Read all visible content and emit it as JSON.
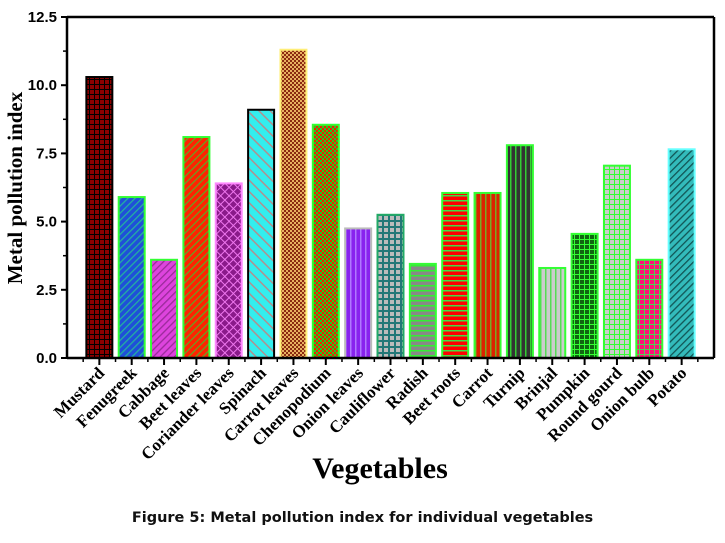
{
  "chart_data": {
    "type": "bar",
    "title": "",
    "xlabel": "Vegetables",
    "ylabel": "Metal pollution index",
    "ylim": [
      0,
      12.5
    ],
    "yticks": [
      "0.0",
      "2.5",
      "5.0",
      "7.5",
      "10.0",
      "12.5"
    ],
    "ytick_values": [
      0,
      2.5,
      5.0,
      7.5,
      10.0,
      12.5
    ],
    "grid": false,
    "legend": "none",
    "categories": [
      "Mustard",
      "Fenugreek",
      "Cabbage",
      "Beet leaves",
      "Coriander leaves",
      "Spinach",
      "Carrot leaves",
      "Chenopodium",
      "Onion leaves",
      "Cauliflower",
      "Radish",
      "Beet roots",
      "Carrot",
      "Turnip",
      "Brinjal",
      "Pumpkin",
      "Round gourd",
      "Onion bulb",
      "Potato"
    ],
    "values": [
      10.3,
      5.9,
      3.6,
      8.1,
      6.4,
      9.1,
      11.3,
      8.55,
      4.75,
      5.25,
      3.45,
      6.05,
      6.05,
      7.8,
      3.3,
      4.55,
      7.05,
      3.6,
      7.65
    ],
    "bar_styles": [
      {
        "fill": "#8b0000",
        "pattern": "grid",
        "pattern_color": "#000000",
        "border": "#000000"
      },
      {
        "fill": "#1f4fd8",
        "pattern": "diag",
        "pattern_color": "#22b0a0",
        "border": "#33ff33"
      },
      {
        "fill": "#dd44dd",
        "pattern": "diag",
        "pattern_color": "#9a2a9a",
        "border": "#33ff33"
      },
      {
        "fill": "#ff2200",
        "pattern": "diag",
        "pattern_color": "#6aa020",
        "border": "#33ff33"
      },
      {
        "fill": "#8a1a8a",
        "pattern": "crosshatch",
        "pattern_color": "#ee77ee",
        "border": "#ff88ff"
      },
      {
        "fill": "#33eeee",
        "pattern": "diag-rev",
        "pattern_color": "#b09090",
        "border": "#000000"
      },
      {
        "fill": "#8b2a10",
        "pattern": "checker",
        "pattern_color": "#e8b060",
        "border": "#ffee77"
      },
      {
        "fill": "#ee2200",
        "pattern": "checker",
        "pattern_color": "#22cc22",
        "border": "#33ff33"
      },
      {
        "fill": "#8822ee",
        "pattern": "vertical",
        "pattern_color": "#b077ff",
        "border": "#bbbbbb"
      },
      {
        "fill": "#bbbbbb",
        "pattern": "grid-thick",
        "pattern_color": "#227777",
        "border": "#22aa66"
      },
      {
        "fill": "#888888",
        "pattern": "horizontal",
        "pattern_color": "#33ee33",
        "border": "#33ff33"
      },
      {
        "fill": "#ff0000",
        "pattern": "horizontal",
        "pattern_color": "#44dd44",
        "border": "#33ff33"
      },
      {
        "fill": "#dd2200",
        "pattern": "vertical",
        "pattern_color": "#77aa22",
        "border": "#33ff33"
      },
      {
        "fill": "#333333",
        "pattern": "vertical",
        "pattern_color": "#33cc33",
        "border": "#33ff33"
      },
      {
        "fill": "#cccccc",
        "pattern": "vertical",
        "pattern_color": "#55dd55",
        "border": "#33ff33"
      },
      {
        "fill": "#116611",
        "pattern": "grid",
        "pattern_color": "#33ff33",
        "border": "#33ff33"
      },
      {
        "fill": "#cccccc",
        "pattern": "grid",
        "pattern_color": "#33ff33",
        "border": "#33ff33"
      },
      {
        "fill": "#ff1177",
        "pattern": "grid",
        "pattern_color": "#55cc55",
        "border": "#33ff33"
      },
      {
        "fill": "#33bbbb",
        "pattern": "diag",
        "pattern_color": "#115555",
        "border": "#66ffff"
      }
    ]
  },
  "caption": "Figure 5: Metal pollution index for individual vegetables"
}
